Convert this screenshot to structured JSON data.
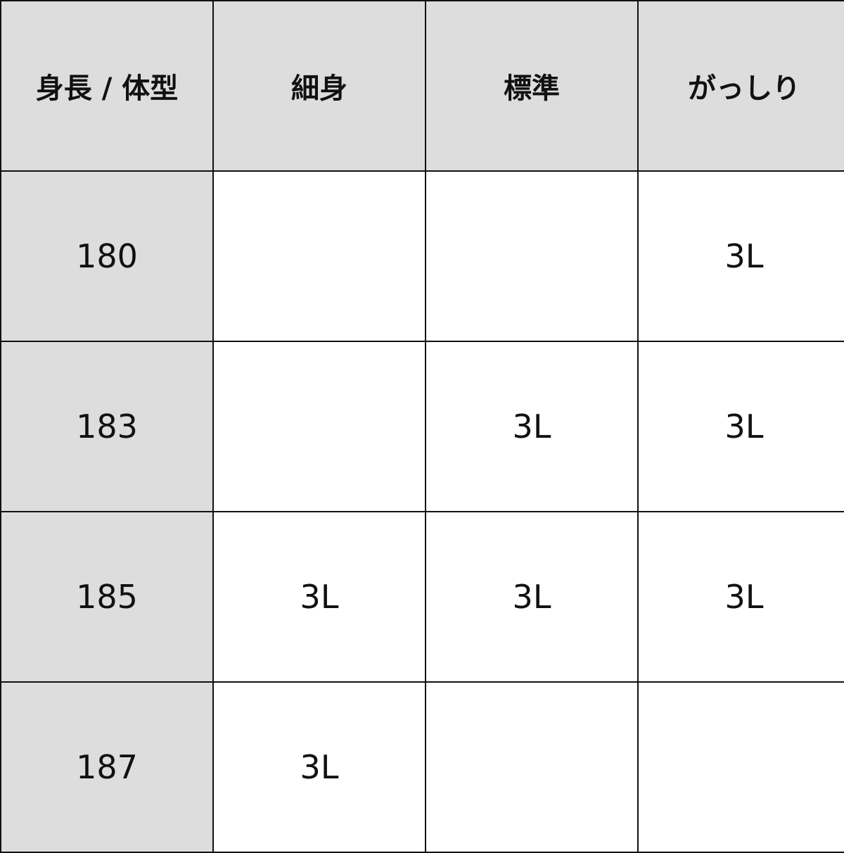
{
  "table": {
    "headers": [
      "身長 / 体型",
      "細身",
      "標準",
      "がっしり"
    ],
    "rows": [
      [
        "180",
        "",
        "",
        "3L"
      ],
      [
        "183",
        "",
        "3L",
        "3L"
      ],
      [
        "185",
        "3L",
        "3L",
        "3L"
      ],
      [
        "187",
        "3L",
        "",
        ""
      ]
    ]
  },
  "colors": {
    "header_bg": "#dcdddc",
    "border": "#111111"
  }
}
